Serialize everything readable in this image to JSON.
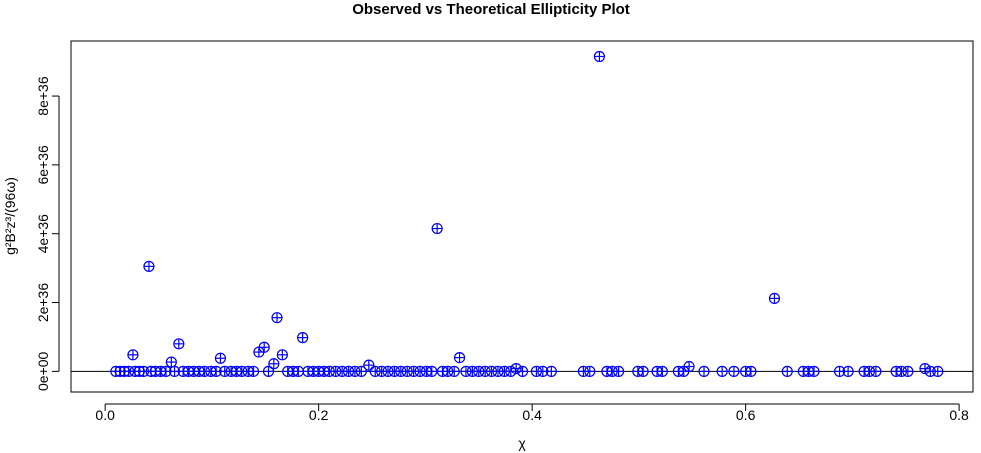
{
  "chart_data": {
    "type": "scatter",
    "title": "Observed vs Theoretical Ellipticity Plot",
    "xlabel": "χ",
    "ylabel": "g²B²z³/(96ω)",
    "xlim": [
      -0.032,
      0.813
    ],
    "ylim": [
      -6e+35,
      9.6e+36
    ],
    "x_ticks": [
      0.0,
      0.2,
      0.4,
      0.6,
      0.8
    ],
    "x_tick_labels": [
      "0.0",
      "0.2",
      "0.4",
      "0.6",
      "0.8"
    ],
    "y_ticks": [
      0,
      2e+36,
      4e+36,
      6e+36,
      8e+36
    ],
    "y_tick_labels": [
      "0e+00",
      "2e+36",
      "4e+36",
      "6e+36",
      "8e+36"
    ],
    "reference_line": {
      "y": 0
    },
    "grid": false,
    "legend": "none",
    "marker": "circle-plus",
    "color": "#0000ff",
    "points": [
      [
        0.463,
        9.15e+36
      ],
      [
        0.311,
        4.15e+36
      ],
      [
        0.041,
        3.05e+36
      ],
      [
        0.627,
        2.12e+36
      ],
      [
        0.161,
        1.56e+36
      ],
      [
        0.185,
        9.8e+35
      ],
      [
        0.069,
        8e+35
      ],
      [
        0.149,
        7e+35
      ],
      [
        0.144,
        5.6e+35
      ],
      [
        0.166,
        4.8e+35
      ],
      [
        0.026,
        4.8e+35
      ],
      [
        0.108,
        3.8e+35
      ],
      [
        0.332,
        4e+35
      ],
      [
        0.062,
        2.7e+35
      ],
      [
        0.158,
        2.2e+35
      ],
      [
        0.247,
        1.8e+35
      ],
      [
        0.547,
        1.4e+35
      ],
      [
        0.768,
        8e+34
      ],
      [
        0.385,
        8e+34
      ],
      [
        0.01,
        0.0
      ],
      [
        0.014,
        0.0
      ],
      [
        0.018,
        0.0
      ],
      [
        0.022,
        0.0
      ],
      [
        0.028,
        0.0
      ],
      [
        0.032,
        0.0
      ],
      [
        0.036,
        0.0
      ],
      [
        0.043,
        0.0
      ],
      [
        0.047,
        0.0
      ],
      [
        0.052,
        0.0
      ],
      [
        0.057,
        0.0
      ],
      [
        0.065,
        0.0
      ],
      [
        0.073,
        0.0
      ],
      [
        0.078,
        0.0
      ],
      [
        0.083,
        0.0
      ],
      [
        0.088,
        0.0
      ],
      [
        0.093,
        0.0
      ],
      [
        0.099,
        0.0
      ],
      [
        0.104,
        0.0
      ],
      [
        0.112,
        0.0
      ],
      [
        0.118,
        0.0
      ],
      [
        0.123,
        0.0
      ],
      [
        0.128,
        0.0
      ],
      [
        0.134,
        0.0
      ],
      [
        0.139,
        0.0
      ],
      [
        0.153,
        0.0
      ],
      [
        0.171,
        0.0
      ],
      [
        0.176,
        0.0
      ],
      [
        0.181,
        0.0
      ],
      [
        0.19,
        0.0
      ],
      [
        0.195,
        0.0
      ],
      [
        0.2,
        0.0
      ],
      [
        0.205,
        0.0
      ],
      [
        0.21,
        0.0
      ],
      [
        0.216,
        0.0
      ],
      [
        0.222,
        0.0
      ],
      [
        0.228,
        0.0
      ],
      [
        0.234,
        0.0
      ],
      [
        0.24,
        0.0
      ],
      [
        0.253,
        0.0
      ],
      [
        0.259,
        0.0
      ],
      [
        0.265,
        0.0
      ],
      [
        0.271,
        0.0
      ],
      [
        0.277,
        0.0
      ],
      [
        0.283,
        0.0
      ],
      [
        0.289,
        0.0
      ],
      [
        0.295,
        0.0
      ],
      [
        0.301,
        0.0
      ],
      [
        0.306,
        0.0
      ],
      [
        0.316,
        0.0
      ],
      [
        0.321,
        0.0
      ],
      [
        0.327,
        0.0
      ],
      [
        0.338,
        0.0
      ],
      [
        0.344,
        0.0
      ],
      [
        0.35,
        0.0
      ],
      [
        0.356,
        0.0
      ],
      [
        0.362,
        0.0
      ],
      [
        0.368,
        0.0
      ],
      [
        0.374,
        0.0
      ],
      [
        0.38,
        0.0
      ],
      [
        0.391,
        0.0
      ],
      [
        0.404,
        0.0
      ],
      [
        0.41,
        0.0
      ],
      [
        0.418,
        0.0
      ],
      [
        0.448,
        0.0
      ],
      [
        0.454,
        0.0
      ],
      [
        0.47,
        0.0
      ],
      [
        0.475,
        0.0
      ],
      [
        0.481,
        0.0
      ],
      [
        0.499,
        0.0
      ],
      [
        0.504,
        0.0
      ],
      [
        0.517,
        0.0
      ],
      [
        0.522,
        0.0
      ],
      [
        0.537,
        0.0
      ],
      [
        0.542,
        0.0
      ],
      [
        0.561,
        0.0
      ],
      [
        0.578,
        0.0
      ],
      [
        0.589,
        0.0
      ],
      [
        0.6,
        0.0
      ],
      [
        0.605,
        0.0
      ],
      [
        0.639,
        0.0
      ],
      [
        0.654,
        0.0
      ],
      [
        0.659,
        0.0
      ],
      [
        0.664,
        0.0
      ],
      [
        0.688,
        0.0
      ],
      [
        0.696,
        0.0
      ],
      [
        0.711,
        0.0
      ],
      [
        0.716,
        0.0
      ],
      [
        0.722,
        0.0
      ],
      [
        0.741,
        0.0
      ],
      [
        0.746,
        0.0
      ],
      [
        0.752,
        0.0
      ],
      [
        0.773,
        0.0
      ],
      [
        0.78,
        0.0
      ]
    ]
  }
}
